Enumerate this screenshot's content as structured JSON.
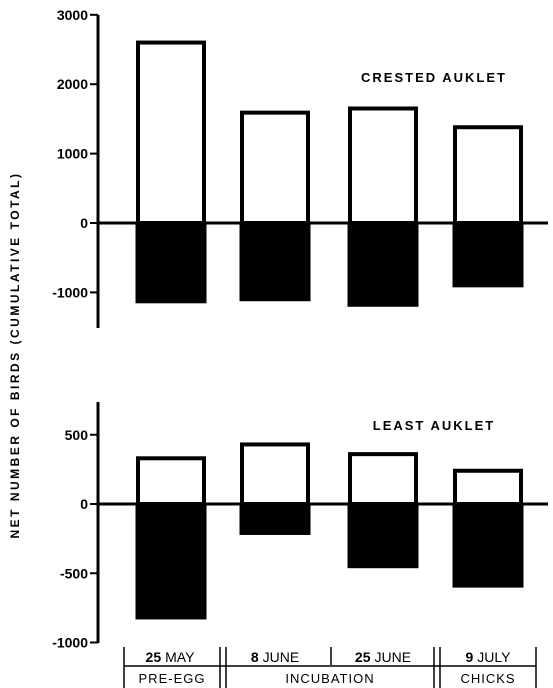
{
  "ylabel": "NET NUMBER OF BIRDS (CUMULATIVE TOTAL)",
  "chart_data": [
    {
      "type": "bar",
      "title": "CRESTED AUKLET",
      "categories": [
        "25 MAY",
        "8 JUNE",
        "25 JUNE",
        "9 JULY"
      ],
      "series": [
        {
          "values": [
            2600,
            1590,
            1650,
            1380
          ]
        },
        {
          "values": [
            -1150,
            -1120,
            -1200,
            -920
          ]
        }
      ],
      "ylim": [
        -1500,
        3000
      ],
      "yticks": [
        3000,
        2000,
        1000,
        0,
        -1000
      ],
      "ytick_labels": [
        "3000",
        "2000",
        "1000",
        "0",
        "-1000"
      ]
    },
    {
      "type": "bar",
      "title": "LEAST AUKLET",
      "categories": [
        "25 MAY",
        "8 JUNE",
        "25 JUNE",
        "9 JULY"
      ],
      "series": [
        {
          "values": [
            330,
            430,
            360,
            240
          ]
        },
        {
          "values": [
            -830,
            -220,
            -460,
            -600
          ]
        }
      ],
      "ylim": [
        -1000,
        700
      ],
      "yticks": [
        500,
        0,
        -500,
        -1000
      ],
      "ytick_labels": [
        "500",
        "0",
        "-500",
        "-1000"
      ]
    }
  ],
  "xaxis": {
    "dates": [
      {
        "day": "25",
        "month": "MAY"
      },
      {
        "day": "8",
        "month": "JUNE"
      },
      {
        "day": "25",
        "month": "JUNE"
      },
      {
        "day": "9",
        "month": "JULY"
      }
    ],
    "phases": [
      "PRE-EGG",
      "INCUBATION",
      "CHICKS"
    ]
  },
  "colors": {
    "positive": "#ffffff",
    "negative": "#000000",
    "stroke": "#000000"
  }
}
